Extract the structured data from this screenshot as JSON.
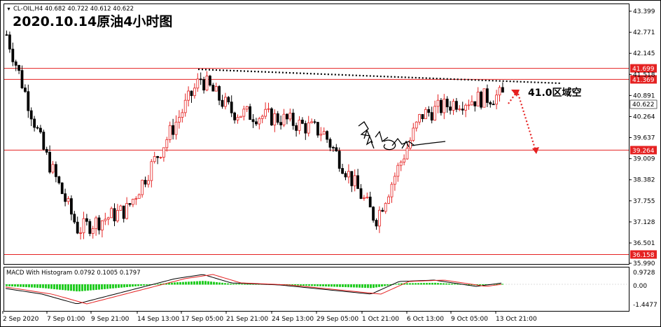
{
  "header": {
    "symbol_line": "CL-OIL,H4  40.682 40.722 40.612 40.622",
    "title": "2020.10.14原油4小时图"
  },
  "price_axis": {
    "ticks": [
      "43.399",
      "42.771",
      "42.145",
      "41.518",
      "40.891",
      "40.264",
      "39.637",
      "39.009",
      "38.382",
      "37.755",
      "37.128",
      "36.501",
      "35.990"
    ],
    "levels": [
      {
        "label": "41.699",
        "value": 41.699,
        "color": "#e52222"
      },
      {
        "label": "41.369",
        "value": 41.369,
        "color": "#e52222"
      },
      {
        "label": "39.264",
        "value": 39.264,
        "color": "#e52222"
      },
      {
        "label": "36.158",
        "value": 36.158,
        "color": "#e52222"
      }
    ],
    "current_price": "40.622"
  },
  "annotation": {
    "text": "41.0区域空"
  },
  "macd": {
    "label": "MACD With Histogram 0.0792 0.1005 0.1797",
    "ticks": [
      "0.9728",
      "0.00",
      "0.00",
      "-1.4477"
    ]
  },
  "x_axis": {
    "labels": [
      "2 Sep 2020",
      "7 Sep 01:00",
      "9 Sep 21:00",
      "14 Sep 13:00",
      "17 Sep 05:00",
      "21 Sep 21:00",
      "24 Sep 13:00",
      "29 Sep 05:00",
      "1 Oct 21:00",
      "6 Oct 13:00",
      "9 Oct 05:00",
      "13 Oct 21:00"
    ]
  },
  "colors": {
    "up_candle": "#e52222",
    "down_candle": "#000000",
    "level_line": "#e52222",
    "trend_line": "#000000",
    "macd_hist": "#22cc22",
    "macd_line": "#000000",
    "signal_line": "#e52222"
  },
  "chart_data": {
    "type": "line",
    "symbol": "CL-OIL",
    "timeframe": "H4",
    "x": [
      "2 Sep 2020",
      "7 Sep 01:00",
      "9 Sep 21:00",
      "14 Sep 13:00",
      "17 Sep 05:00",
      "21 Sep 21:00",
      "24 Sep 13:00",
      "29 Sep 05:00",
      "1 Oct 21:00",
      "6 Oct 13:00",
      "9 Oct 05:00",
      "13 Oct 21:00"
    ],
    "series": [
      {
        "values": [
          42.7,
          39.3,
          36.9,
          37.5,
          41.4,
          40.4,
          40.2,
          39.8,
          37.2,
          40.3,
          40.7,
          40.9
        ]
      }
    ],
    "ylim": [
      35.99,
      43.6
    ],
    "horizontal_levels": [
      41.699,
      41.369,
      39.264,
      36.158
    ],
    "last_price": 40.622,
    "ohlc_last": {
      "open": 40.682,
      "high": 40.722,
      "low": 40.612,
      "close": 40.622
    }
  }
}
